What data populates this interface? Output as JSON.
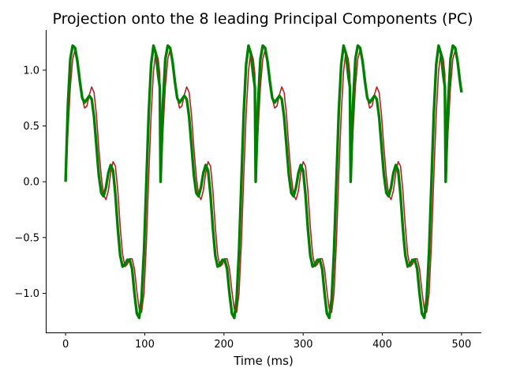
{
  "chart_data": {
    "type": "line",
    "title": "Projection onto the 8 leading Principal Components (PC)",
    "xlabel": "Time (ms)",
    "ylabel": "",
    "xlim": [
      -25,
      525
    ],
    "ylim": [
      -1.35,
      1.36
    ],
    "xticks": [
      0,
      100,
      200,
      300,
      400,
      500
    ],
    "yticks": [
      -1.0,
      -0.5,
      0.0,
      0.5,
      1.0
    ],
    "ytick_labels": [
      "−1.0",
      "−0.5",
      "0.0",
      "0.5",
      "1.0"
    ],
    "legend": "none",
    "grid": false,
    "spines": [
      "left",
      "bottom"
    ],
    "series": [
      {
        "color": "#b22222",
        "line_width": 1.6,
        "x": [
          0,
          3,
          6,
          9,
          12,
          15,
          18,
          21,
          24,
          27,
          30,
          33,
          36,
          39,
          42,
          45,
          48,
          51,
          54,
          57,
          60,
          63,
          66,
          69,
          72,
          75,
          78,
          81,
          84,
          87,
          90,
          93,
          96,
          99,
          102,
          105,
          108,
          111,
          114,
          117,
          120
        ],
        "y": [
          0.0,
          0.45,
          0.85,
          1.1,
          1.18,
          1.1,
          0.92,
          0.75,
          0.66,
          0.68,
          0.78,
          0.85,
          0.8,
          0.6,
          0.3,
          0.05,
          -0.12,
          -0.16,
          -0.08,
          0.08,
          0.18,
          0.14,
          -0.08,
          -0.4,
          -0.65,
          -0.76,
          -0.74,
          -0.69,
          -0.69,
          -0.78,
          -0.98,
          -1.14,
          -1.17,
          -1.0,
          -0.55,
          0.05,
          0.6,
          0.99,
          1.17,
          1.1,
          0.9
        ],
        "period": 120,
        "x_end": 500
      },
      {
        "color": "#008000",
        "line_width": 3.4,
        "x": [
          0,
          3,
          6,
          9,
          12,
          15,
          18,
          21,
          24,
          27,
          30,
          33,
          36,
          39,
          42,
          45,
          48,
          51,
          54,
          57,
          60,
          63,
          66,
          69,
          72,
          75,
          78,
          81,
          84,
          87,
          90,
          93,
          96,
          99,
          102,
          105,
          108,
          111,
          114,
          117,
          120
        ],
        "y": [
          0.0,
          0.7,
          1.1,
          1.22,
          1.2,
          1.08,
          0.9,
          0.75,
          0.71,
          0.74,
          0.77,
          0.74,
          0.58,
          0.32,
          0.06,
          -0.1,
          -0.13,
          -0.05,
          0.08,
          0.15,
          0.1,
          -0.12,
          -0.42,
          -0.66,
          -0.76,
          -0.74,
          -0.7,
          -0.7,
          -0.78,
          -1.0,
          -1.18,
          -1.22,
          -1.05,
          -0.62,
          0.0,
          0.62,
          1.05,
          1.22,
          1.15,
          0.95,
          0.8
        ],
        "period": 120,
        "x_end": 500
      }
    ]
  }
}
